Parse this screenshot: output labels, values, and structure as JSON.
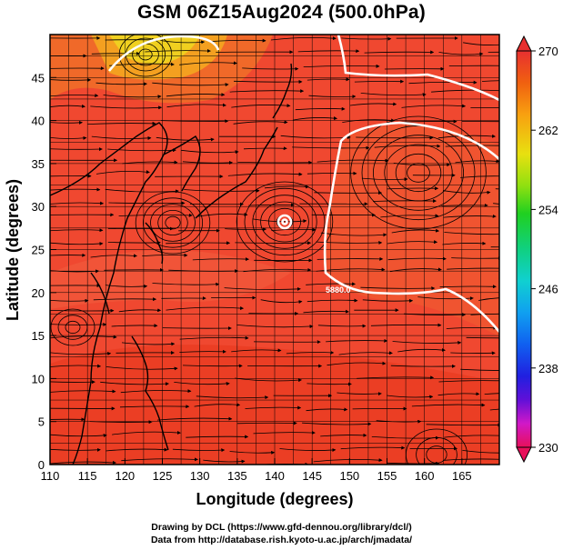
{
  "title": "GSM 06Z15Aug2024 (500.0hPa)",
  "footer": {
    "line1": "Drawing by DCL (https://www.gfd-dennou.org/library/dcl/)",
    "line2": "Data from http://database.rish.kyoto-u.ac.jp/arch/jmadata/"
  },
  "map": {
    "xlabel": "Longitude (degrees)",
    "ylabel": "Latitude  (degrees)",
    "xlim": [
      110,
      170
    ],
    "ylim": [
      0,
      50
    ],
    "xticks": [
      "110",
      "115",
      "120",
      "125",
      "130",
      "135",
      "140",
      "145",
      "150",
      "155",
      "160",
      "165"
    ],
    "yticks": [
      "0",
      "5",
      "10",
      "15",
      "20",
      "25",
      "30",
      "35",
      "40",
      "45"
    ],
    "contour_label": "5880.0",
    "background_color": "#f04830"
  },
  "colorbar": {
    "ticks": [
      "270",
      "262",
      "254",
      "246",
      "238",
      "230"
    ],
    "colors": [
      "#e8105a",
      "#d018c8",
      "#6010d8",
      "#2020e0",
      "#1060f0",
      "#10a0f0",
      "#10d0d0",
      "#10d080",
      "#20d020",
      "#90e010",
      "#e8e010",
      "#f8a010",
      "#f06010",
      "#e83030"
    ]
  }
}
